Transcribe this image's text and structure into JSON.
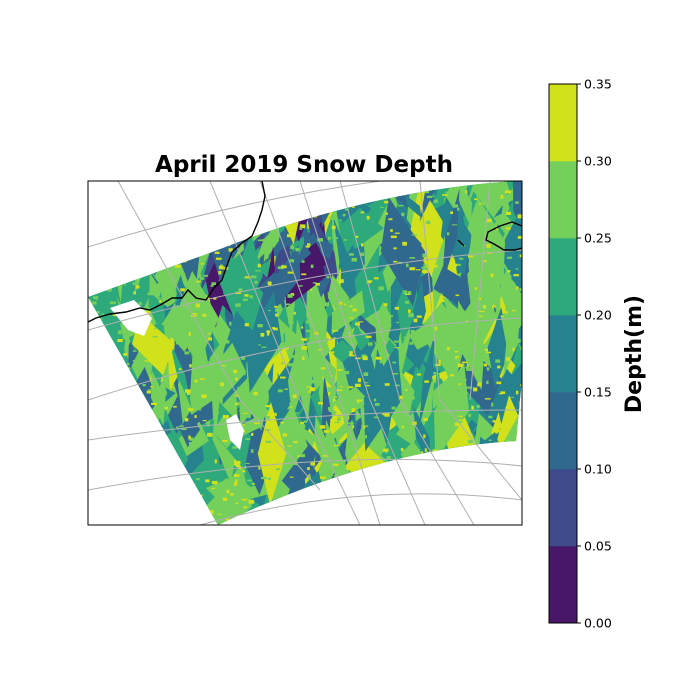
{
  "title": "April 2019 Snow Depth",
  "colorbar": {
    "label": "Depth(m)",
    "levels": [
      "0.00",
      "0.05",
      "0.10",
      "0.15",
      "0.20",
      "0.25",
      "0.30",
      "0.35"
    ],
    "colors": [
      "#481769",
      "#3e4a89",
      "#31688e",
      "#26828e",
      "#2ea97c",
      "#75cf5b",
      "#d1e11c"
    ]
  },
  "map": {
    "projection": "polar stereographic",
    "gridlines": true,
    "coastlines": true,
    "background": "#ffffff",
    "dominant_colors": [
      "#2ea97c",
      "#75cf5b",
      "#26828e",
      "#d1e11c"
    ]
  }
}
